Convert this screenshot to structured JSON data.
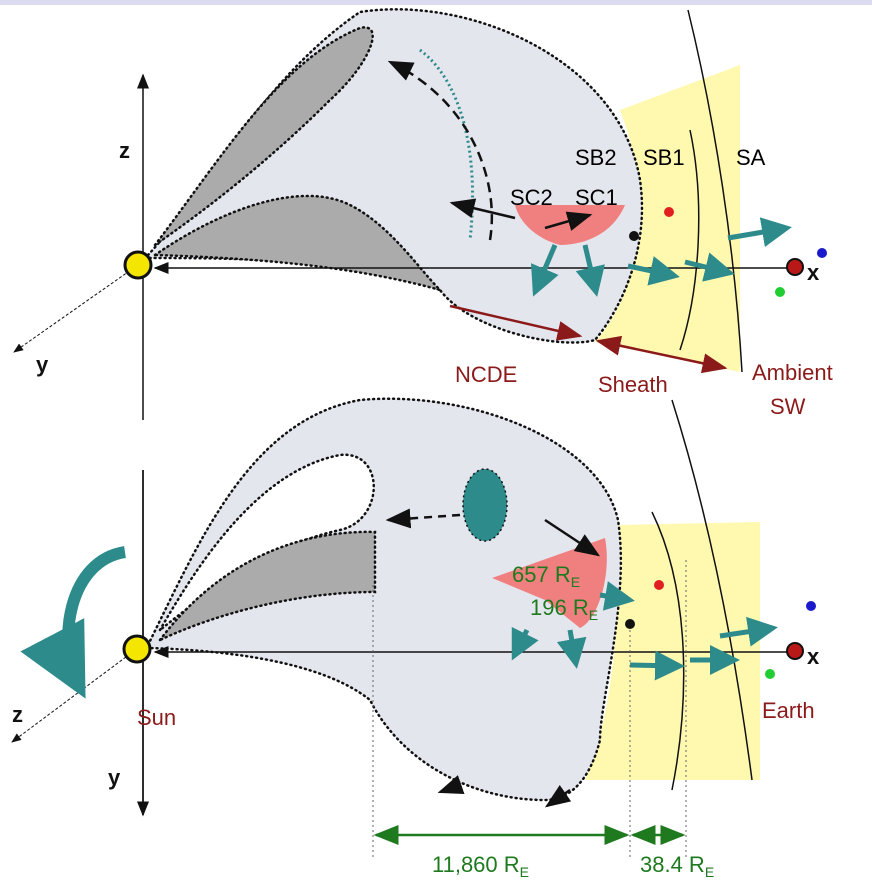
{
  "top_panel": {
    "axis_z": "z",
    "axis_y": "y",
    "axis_x": "x",
    "sb2": "SB2",
    "sb1": "SB1",
    "sa": "SA",
    "sc2": "SC2",
    "sc1": "SC1",
    "ncde": "NCDE",
    "sheath": "Sheath",
    "ambient_sw": [
      "Ambient",
      "SW"
    ]
  },
  "bottom_panel": {
    "axis_z": "z",
    "axis_y": "y",
    "axis_x": "x",
    "sun": "Sun",
    "earth": "Earth",
    "chord_657": {
      "text": "657 R",
      "subscript": "E"
    },
    "chord_196": {
      "text": "196 R",
      "subscript": "E"
    },
    "distance_11860": {
      "text": "11,860 R",
      "subscript": "E"
    },
    "distance_38_4": {
      "text": "38.4 R",
      "subscript": "E"
    }
  }
}
